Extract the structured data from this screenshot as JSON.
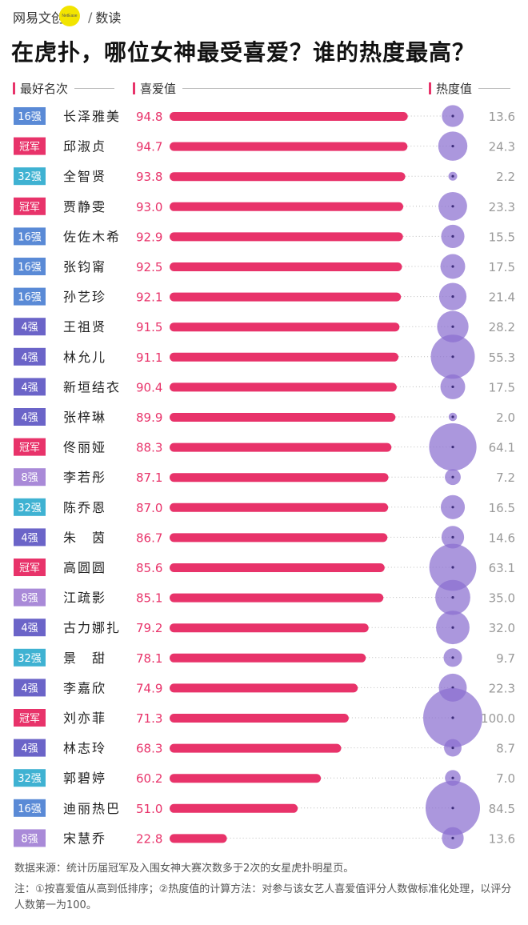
{
  "brand": {
    "logo": "网易文创",
    "dot": "NetEase",
    "sep": "/",
    "sub": "数读"
  },
  "title": "在虎扑，哪位女神最受喜爱？谁的热度最高？",
  "columns": {
    "rank": "最好名次",
    "love": "喜爱值",
    "heat": "热度值"
  },
  "colors": {
    "bar": "#e8336a",
    "bubble": "#8a6fd0",
    "badge": {
      "16强": "#5a8ad6",
      "冠军": "#e8336a",
      "32强": "#3fb2d2",
      "4强": "#6b64c8",
      "8强": "#a98ad8"
    }
  },
  "chart_data": {
    "type": "bar",
    "categories": [
      "长泽雅美",
      "邱淑贞",
      "全智贤",
      "贾静雯",
      "佐佐木希",
      "张钧甯",
      "孙艺珍",
      "王祖贤",
      "林允儿",
      "新垣结衣",
      "张梓琳",
      "佟丽娅",
      "李若彤",
      "陈乔恩",
      "朱　茵",
      "高圆圆",
      "江疏影",
      "古力娜扎",
      "景　甜",
      "李嘉欣",
      "刘亦菲",
      "林志玲",
      "郭碧婷",
      "迪丽热巴",
      "宋慧乔"
    ],
    "best_rank": [
      "16强",
      "冠军",
      "32强",
      "冠军",
      "16强",
      "16强",
      "16强",
      "4强",
      "4强",
      "4强",
      "4强",
      "冠军",
      "8强",
      "32强",
      "4强",
      "冠军",
      "8强",
      "4强",
      "32强",
      "4强",
      "冠军",
      "4强",
      "32强",
      "16强",
      "8强"
    ],
    "series": [
      {
        "name": "喜爱值",
        "values": [
          94.8,
          94.7,
          93.8,
          93.0,
          92.9,
          92.5,
          92.1,
          91.5,
          91.1,
          90.4,
          89.9,
          88.3,
          87.1,
          87.0,
          86.7,
          85.6,
          85.1,
          79.2,
          78.1,
          74.9,
          71.3,
          68.3,
          60.2,
          51.0,
          22.8
        ]
      },
      {
        "name": "热度值",
        "values": [
          13.6,
          24.3,
          2.2,
          23.3,
          15.5,
          17.5,
          21.4,
          28.2,
          55.3,
          17.5,
          2.0,
          64.1,
          7.2,
          16.5,
          14.6,
          63.1,
          35.0,
          32.0,
          9.7,
          22.3,
          100.0,
          8.7,
          7.0,
          84.5,
          13.6
        ]
      }
    ],
    "love_labels": [
      "94.8",
      "94.7",
      "93.8",
      "93.0",
      "92.9",
      "92.5",
      "92.1",
      "91.5",
      "91.1",
      "90.4",
      "89.9",
      "88.3",
      "87.1",
      "87.0",
      "86.7",
      "85.6",
      "85.1",
      "79.2",
      "78.1",
      "74.9",
      "71.3",
      "68.3",
      "60.2",
      "51.0",
      "22.8"
    ],
    "heat_labels": [
      "13.6",
      "24.3",
      "2.2",
      "23.3",
      "15.5",
      "17.5",
      "21.4",
      "28.2",
      "55.3",
      "17.5",
      "2.0",
      "64.1",
      "7.2",
      "16.5",
      "14.6",
      "63.1",
      "35.0",
      "32.0",
      "9.7",
      "22.3",
      "100.0",
      "8.7",
      "7.0",
      "84.5",
      "13.6"
    ],
    "xlim": [
      0,
      100
    ]
  },
  "footer": {
    "source": "数据来源：统计历届冠军及入围女神大赛次数多于2次的女星虎扑明星页。",
    "note": "注：①按喜爱值从高到低排序；②热度值的计算方法：对参与该女艺人喜爱值评分人数做标准化处理，以评分人数第一为100。"
  }
}
